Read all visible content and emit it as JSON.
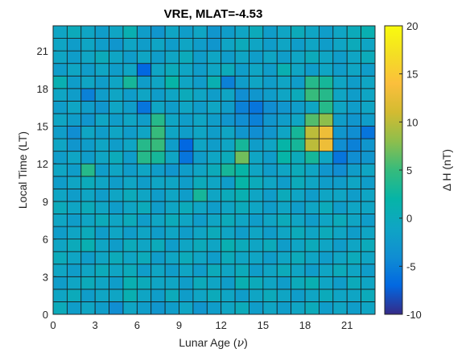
{
  "chart_data": {
    "type": "heatmap",
    "title": "VRE, MLAT=-4.53",
    "xlabel_prefix": "Lunar Age (",
    "xlabel_symbol": "ν",
    "xlabel_suffix": ")",
    "ylabel": "Local Time (LT)",
    "colorbar_label": "Δ H (nT)",
    "x_ticks": [
      "0",
      "3",
      "6",
      "9",
      "12",
      "15",
      "18",
      "21"
    ],
    "y_ticks": [
      "0",
      "3",
      "6",
      "9",
      "12",
      "15",
      "18",
      "21"
    ],
    "colorbar_ticks": [
      "-10",
      "-5",
      "0",
      "5",
      "10",
      "15",
      "20"
    ],
    "xlim": [
      0,
      23
    ],
    "ylim": [
      0,
      23
    ],
    "clim": [
      -10,
      20
    ],
    "colormap": "parula",
    "grid_cells": "23 columns (lunar age 0-22) x 23 rows (local time 0-22); values[row][col], row 0 = LT 0",
    "values": [
      [
        0,
        -2,
        -1,
        -2,
        -4,
        -1,
        -2,
        -3,
        -2,
        -1,
        -3,
        -2,
        -1,
        0,
        -2,
        -1,
        -2,
        -1,
        0,
        -2,
        -1,
        -2,
        -1
      ],
      [
        -1,
        0,
        -2,
        -1,
        -1,
        1,
        -1,
        -2,
        0,
        -2,
        -1,
        0,
        -1,
        -2,
        -1,
        0,
        -1,
        -2,
        -1,
        0,
        -1,
        -1,
        0
      ],
      [
        -2,
        -1,
        0,
        -1,
        -2,
        1,
        0,
        -1,
        -1,
        -2,
        0,
        -1,
        -2,
        1,
        0,
        -1,
        -2,
        0,
        1,
        -1,
        -2,
        0,
        -1
      ],
      [
        -1,
        -2,
        -1,
        0,
        -1,
        0,
        -2,
        -1,
        -2,
        -1,
        -2,
        0,
        -1,
        0,
        -2,
        -1,
        0,
        -1,
        -2,
        -1,
        0,
        -1,
        -2
      ],
      [
        0,
        -1,
        -2,
        -1,
        0,
        -1,
        0,
        -2,
        -1,
        0,
        -1,
        -2,
        0,
        -1,
        -1,
        -2,
        -1,
        0,
        -1,
        -2,
        -1,
        0,
        -1
      ],
      [
        -1,
        0,
        1,
        -1,
        -2,
        0,
        -1,
        0,
        -2,
        -1,
        0,
        -1,
        1,
        0,
        -1,
        0,
        -2,
        -1,
        0,
        -1,
        -2,
        -1,
        0
      ],
      [
        -2,
        -1,
        0,
        -2,
        -1,
        -2,
        -1,
        -2,
        -1,
        -2,
        -1,
        0,
        -1,
        -2,
        -1,
        -2,
        -1,
        0,
        -1,
        0,
        -1,
        -2,
        -1
      ],
      [
        -1,
        -2,
        -1,
        0,
        -1,
        0,
        -2,
        -1,
        0,
        -1,
        -2,
        -1,
        0,
        -1,
        -2,
        -1,
        0,
        -1,
        -2,
        -1,
        0,
        -1,
        -2
      ],
      [
        0,
        -1,
        0,
        -1,
        -2,
        -1,
        0,
        -2,
        -1,
        0,
        -1,
        -2,
        -1,
        0,
        -1,
        -2,
        -1,
        -2,
        -1,
        0,
        -2,
        -1,
        -1
      ],
      [
        -1,
        -2,
        -1,
        -2,
        -1,
        0,
        -1,
        -2,
        -1,
        -2,
        3,
        -1,
        0,
        1,
        -1,
        -2,
        0,
        -1,
        -2,
        -1,
        -1,
        -2,
        -1
      ],
      [
        -2,
        -1,
        0,
        -1,
        -2,
        -1,
        -2,
        -1,
        -1,
        -2,
        0,
        -1,
        -2,
        2,
        0,
        -1,
        -2,
        0,
        -1,
        -2,
        -2,
        -1,
        -2
      ],
      [
        -1,
        -2,
        4,
        -2,
        -1,
        -2,
        -1,
        -2,
        -3,
        -2,
        -1,
        0,
        3,
        2,
        -1,
        -2,
        -1,
        0,
        -1,
        -3,
        -4,
        -2,
        -1
      ],
      [
        -2,
        -1,
        -2,
        -1,
        0,
        -2,
        4,
        3,
        -1,
        -6,
        -2,
        -1,
        0,
        7,
        -1,
        -2,
        2,
        0,
        3,
        -1,
        -6,
        -4,
        -3
      ],
      [
        -1,
        -3,
        -2,
        -1,
        -2,
        -1,
        4,
        5,
        -2,
        -7,
        -1,
        -2,
        -1,
        3,
        -2,
        -1,
        2,
        3,
        10,
        13,
        -4,
        -5,
        -3
      ],
      [
        -2,
        -4,
        -1,
        -2,
        -1,
        -2,
        -1,
        5,
        -1,
        -2,
        -1,
        -2,
        -1,
        -3,
        -4,
        -3,
        -1,
        3,
        10,
        13,
        -3,
        -4,
        -6
      ],
      [
        -1,
        -2,
        -3,
        -1,
        -2,
        -1,
        -2,
        4,
        -1,
        -2,
        -1,
        -2,
        -3,
        -4,
        -5,
        -3,
        -2,
        -1,
        6,
        8,
        -2,
        -3,
        -2
      ],
      [
        -2,
        -1,
        -2,
        -3,
        -1,
        -2,
        -6,
        -1,
        -2,
        -1,
        -2,
        -1,
        -2,
        -5,
        -6,
        -4,
        -3,
        -2,
        -1,
        4,
        -1,
        -2,
        -1
      ],
      [
        -1,
        -2,
        -5,
        -2,
        -1,
        -2,
        -1,
        -2,
        -1,
        0,
        -1,
        -2,
        -1,
        -4,
        -3,
        -2,
        -1,
        0,
        5,
        4,
        -1,
        -2,
        -1
      ],
      [
        1,
        -2,
        -1,
        -2,
        -1,
        3,
        -2,
        -1,
        2,
        -1,
        -2,
        1,
        -5,
        -2,
        -1,
        -2,
        -1,
        -2,
        4,
        3,
        -1,
        -2,
        -1
      ],
      [
        -2,
        -1,
        -2,
        -1,
        -2,
        -1,
        -7,
        -1,
        0,
        -1,
        -2,
        -1,
        0,
        -2,
        -1,
        -2,
        1,
        -1,
        -2,
        -1,
        -2,
        -1,
        -2
      ],
      [
        -1,
        -2,
        -1,
        0,
        -1,
        -2,
        -1,
        -2,
        -1,
        0,
        -2,
        -1,
        -2,
        -1,
        -2,
        -1,
        -2,
        -1,
        0,
        -1,
        -2,
        -1,
        0
      ],
      [
        -1,
        -2,
        -1,
        -2,
        -3,
        -1,
        -2,
        -1,
        -2,
        -1,
        -2,
        -3,
        -1,
        0,
        -1,
        -2,
        -1,
        -2,
        -1,
        -2,
        -1,
        0,
        -1
      ],
      [
        -1,
        0,
        -1,
        -2,
        -1,
        1,
        -2,
        -3,
        -1,
        -2,
        -1,
        -3,
        -2,
        -1,
        0,
        -2,
        -1,
        0,
        -1,
        -2,
        -1,
        0,
        1
      ]
    ]
  }
}
